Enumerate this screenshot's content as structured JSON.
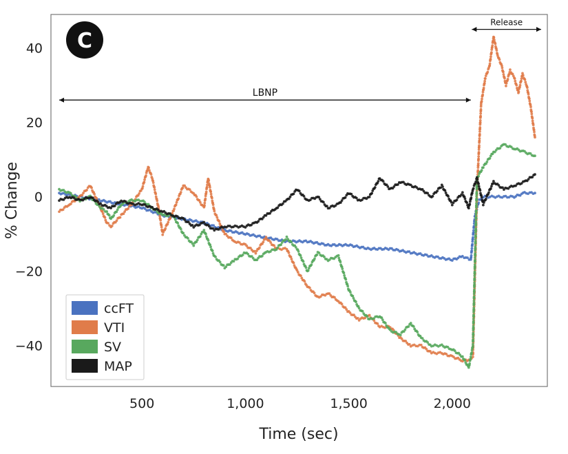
{
  "panel_label": "C",
  "chart_data": {
    "type": "scatter",
    "xlabel": "Time (sec)",
    "ylabel": "% Change",
    "xlim": [
      60,
      2460
    ],
    "ylim": [
      -51,
      49
    ],
    "xticks": [
      500,
      1000,
      1500,
      2000
    ],
    "xtick_labels": [
      "500",
      "1,000",
      "1,500",
      "2,000"
    ],
    "yticks": [
      40,
      20,
      0,
      -20,
      -40
    ],
    "ytick_labels": [
      "40",
      "20",
      "0",
      "−20",
      "−40"
    ],
    "grid": false,
    "legend_position": "lower-left",
    "annotations": [
      {
        "text": "LBNP",
        "x_start": 100,
        "x_end": 2090,
        "y": 26
      },
      {
        "text": "Release",
        "x_start": 2095,
        "x_end": 2430,
        "y": 45
      }
    ],
    "series": [
      {
        "name": "ccFT",
        "color": "#4a72c0",
        "x": [
          100,
          200,
          300,
          400,
          500,
          600,
          700,
          800,
          900,
          1000,
          1100,
          1200,
          1300,
          1400,
          1500,
          1600,
          1700,
          1800,
          1900,
          2000,
          2050,
          2090,
          2110,
          2130,
          2150,
          2200,
          2250,
          2300,
          2350,
          2400
        ],
        "y": [
          1,
          0,
          -1,
          -2,
          -3,
          -5,
          -6,
          -7,
          -9,
          -10,
          -11,
          -12,
          -12,
          -13,
          -13,
          -14,
          -14,
          -15,
          -16,
          -17,
          -16,
          -17,
          -5,
          -1,
          0,
          0,
          0,
          0,
          1,
          1
        ]
      },
      {
        "name": "VTI",
        "color": "#e07c4a",
        "x": [
          100,
          150,
          200,
          250,
          300,
          330,
          350,
          400,
          450,
          500,
          530,
          550,
          580,
          600,
          650,
          700,
          750,
          800,
          820,
          850,
          900,
          950,
          1000,
          1050,
          1100,
          1150,
          1200,
          1250,
          1300,
          1350,
          1400,
          1450,
          1500,
          1550,
          1600,
          1650,
          1700,
          1750,
          1800,
          1850,
          1900,
          1950,
          2000,
          2050,
          2080,
          2100,
          2120,
          2140,
          2160,
          2180,
          2200,
          2220,
          2240,
          2260,
          2280,
          2300,
          2320,
          2340,
          2360,
          2380,
          2400
        ],
        "y": [
          -4,
          -2,
          0,
          3,
          -3,
          -7,
          -8,
          -5,
          -2,
          2,
          8,
          5,
          -3,
          -10,
          -4,
          3,
          1,
          -3,
          5,
          -4,
          -10,
          -12,
          -13,
          -15,
          -11,
          -14,
          -14,
          -20,
          -24,
          -27,
          -26,
          -28,
          -31,
          -33,
          -32,
          -35,
          -35,
          -38,
          -40,
          -40,
          -42,
          -42,
          -43,
          -44,
          -44,
          -43,
          2,
          25,
          32,
          35,
          43,
          38,
          35,
          30,
          34,
          32,
          28,
          33,
          30,
          24,
          16
        ]
      },
      {
        "name": "SV",
        "color": "#58a85e",
        "x": [
          100,
          150,
          200,
          250,
          300,
          330,
          350,
          400,
          450,
          500,
          550,
          600,
          650,
          700,
          750,
          800,
          850,
          900,
          950,
          1000,
          1050,
          1100,
          1150,
          1200,
          1250,
          1300,
          1350,
          1400,
          1450,
          1500,
          1550,
          1600,
          1650,
          1700,
          1750,
          1800,
          1850,
          1900,
          1950,
          2000,
          2050,
          2080,
          2100,
          2120,
          2150,
          2200,
          2250,
          2300,
          2350,
          2400
        ],
        "y": [
          2,
          1,
          -1,
          0,
          -3,
          -4,
          -6,
          -2,
          -1,
          -1,
          -3,
          -5,
          -5,
          -10,
          -13,
          -9,
          -16,
          -19,
          -17,
          -15,
          -17,
          -15,
          -14,
          -11,
          -14,
          -20,
          -15,
          -17,
          -16,
          -25,
          -30,
          -33,
          -32,
          -36,
          -37,
          -34,
          -38,
          -40,
          -40,
          -41,
          -43,
          -46,
          -40,
          5,
          8,
          12,
          14,
          13,
          12,
          11
        ]
      },
      {
        "name": "MAP",
        "color": "#1a1a1a",
        "x": [
          100,
          150,
          200,
          250,
          300,
          350,
          400,
          450,
          500,
          550,
          600,
          650,
          700,
          750,
          800,
          850,
          900,
          950,
          1000,
          1050,
          1100,
          1150,
          1200,
          1250,
          1300,
          1350,
          1400,
          1450,
          1500,
          1550,
          1600,
          1650,
          1700,
          1750,
          1800,
          1850,
          1900,
          1950,
          2000,
          2050,
          2080,
          2100,
          2120,
          2150,
          2200,
          2250,
          2300,
          2350,
          2400
        ],
        "y": [
          -1,
          0,
          -1,
          0,
          -2,
          -3,
          -1,
          -2,
          -2,
          -3,
          -4,
          -5,
          -6,
          -8,
          -7,
          -9,
          -8,
          -8,
          -8,
          -7,
          -5,
          -3,
          -1,
          2,
          -1,
          0,
          -3,
          -2,
          1,
          -1,
          0,
          5,
          2,
          4,
          3,
          2,
          0,
          3,
          -2,
          1,
          -3,
          2,
          5,
          -2,
          4,
          2,
          3,
          4,
          6
        ]
      }
    ]
  }
}
